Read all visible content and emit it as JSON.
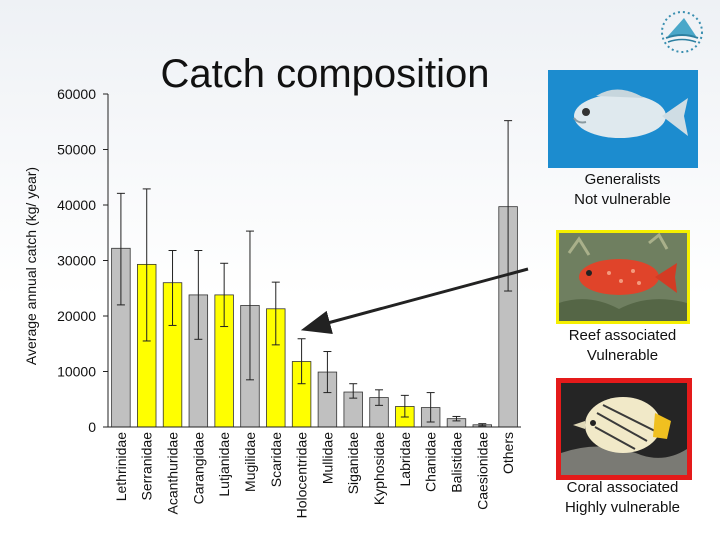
{
  "chart_data": {
    "type": "bar",
    "title": "Catch composition",
    "ylabel": "Average annual catch (kg/ year)",
    "xlabel": "",
    "ylim": [
      0,
      60000
    ],
    "yticks": [
      0,
      10000,
      20000,
      30000,
      40000,
      50000,
      60000
    ],
    "categories": [
      "Lethrinidae",
      "Serranidae",
      "Acanthuridae",
      "Carangidae",
      "Lutjanidae",
      "Mugilidae",
      "Scaridae",
      "Holocentridae",
      "Mullidae",
      "Siganidae",
      "Kyphosidae",
      "Labridae",
      "Chanidae",
      "Balistidae",
      "Caesionidae",
      "Others"
    ],
    "values": [
      32200,
      29300,
      26000,
      23800,
      23800,
      21900,
      21300,
      11800,
      9900,
      6300,
      5300,
      3700,
      3500,
      1500,
      400,
      39700
    ],
    "err_low": [
      22000,
      15500,
      18300,
      15800,
      18100,
      8500,
      14800,
      7800,
      6200,
      5200,
      3900,
      1800,
      900,
      1100,
      200,
      24500
    ],
    "err_high": [
      42100,
      42900,
      31800,
      31800,
      29500,
      35300,
      26100,
      15900,
      13600,
      7800,
      6700,
      5700,
      6200,
      1900,
      600,
      55200
    ],
    "colors": [
      "#c0c0c0",
      "#ffff00",
      "#ffff00",
      "#c0c0c0",
      "#ffff00",
      "#c0c0c0",
      "#ffff00",
      "#ffff00",
      "#c0c0c0",
      "#c0c0c0",
      "#c0c0c0",
      "#ffff00",
      "#c0c0c0",
      "#c0c0c0",
      "#c0c0c0",
      "#c0c0c0"
    ]
  },
  "annotations": {
    "generalist": {
      "line1": "Generalists",
      "line2": "Not vulnerable"
    },
    "reef": {
      "line1": "Reef associated",
      "line2": "Vulnerable"
    },
    "coral": {
      "line1": "Coral associated",
      "line2": "Highly vulnerable"
    }
  },
  "photos": {
    "generalist": "fish-photo-emperor",
    "reef": "fish-photo-grouper",
    "coral": "fish-photo-butterflyfish"
  },
  "colors": {
    "gray_bar": "#c0c0c0",
    "yellow_bar": "#ffff00",
    "arrow": "#222222",
    "reef_frame": "#f5ef00",
    "coral_frame": "#e41a1a"
  }
}
